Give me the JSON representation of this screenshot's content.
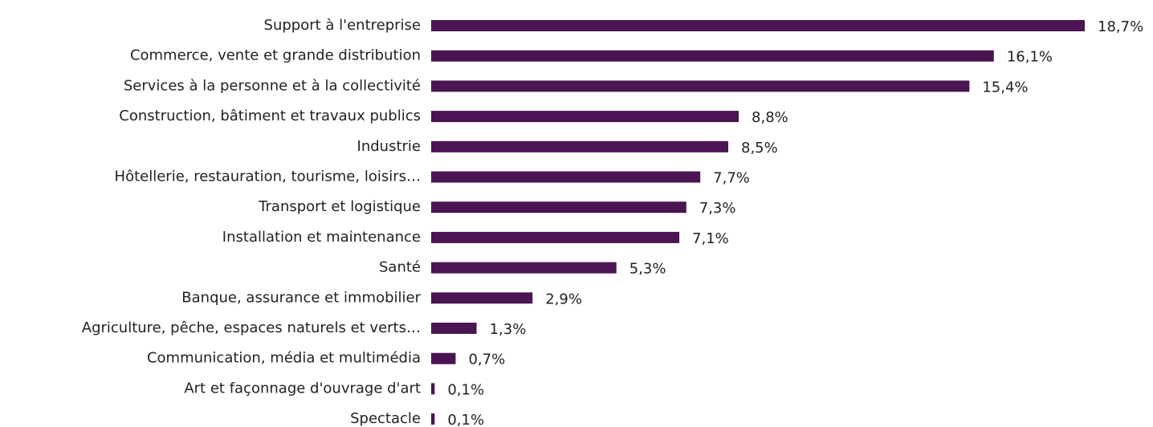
{
  "chart_data": {
    "type": "bar",
    "orientation": "horizontal",
    "categories": [
      "Support à l'entreprise",
      "Commerce, vente et grande distribution",
      "Services à la personne et à la collectivité",
      "Construction, bâtiment et travaux publics",
      "Industrie",
      "Hôtellerie, restauration, tourisme, loisirs…",
      "Transport et logistique",
      "Installation et maintenance",
      "Santé",
      "Banque, assurance et immobilier",
      "Agriculture, pêche, espaces naturels et verts…",
      "Communication, média et multimédia",
      "Art et façonnage d'ouvrage d'art",
      "Spectacle"
    ],
    "values": [
      18.7,
      16.1,
      15.4,
      8.8,
      8.5,
      7.7,
      7.3,
      7.1,
      5.3,
      2.9,
      1.3,
      0.7,
      0.1,
      0.1
    ],
    "value_labels": [
      "18,7%",
      "16,1%",
      "15,4%",
      "8,8%",
      "8,5%",
      "7,7%",
      "7,3%",
      "7,1%",
      "5,3%",
      "2,9%",
      "1,3%",
      "0,7%",
      "0,1%",
      "0,1%"
    ],
    "color": "#4a1552"
  }
}
